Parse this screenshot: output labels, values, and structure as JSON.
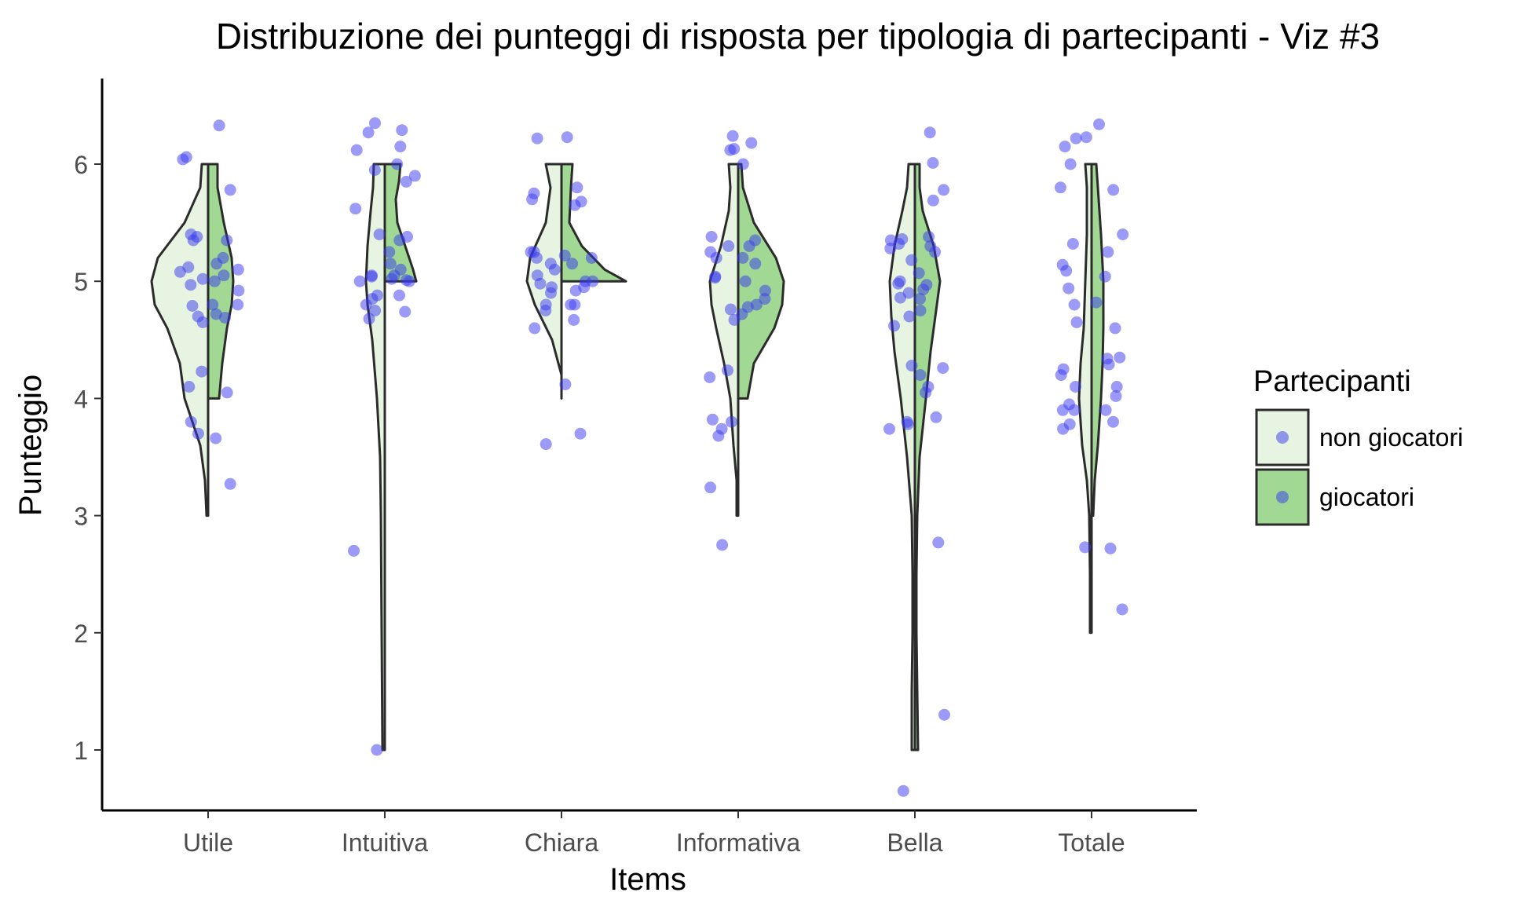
{
  "chart_data": {
    "type": "violin",
    "title": "Distribuzione dei punteggi di risposta per tipologia di partecipanti - Viz #3",
    "xlabel": "Items",
    "ylabel": "Punteggio",
    "categories": [
      "Utile",
      "Intuitiva",
      "Chiara",
      "Informativa",
      "Bella",
      "Totale"
    ],
    "y_ticks": [
      1,
      2,
      3,
      4,
      5,
      6
    ],
    "ylim": [
      0.4,
      6.6
    ],
    "grid": false,
    "legend": {
      "title": "Partecipanti",
      "position": "right",
      "entries": [
        {
          "label": "non giocatori",
          "color": "#e6f4e1"
        },
        {
          "label": "giocatori",
          "color": "#a0d894"
        }
      ]
    },
    "point_color": "#3838f0",
    "groups": [
      {
        "category": "Utile",
        "non_giocatori": {
          "min": 3,
          "max": 6,
          "density": [
            [
              3,
              2
            ],
            [
              3.3,
              4
            ],
            [
              3.6,
              10
            ],
            [
              4,
              30
            ],
            [
              4.3,
              36
            ],
            [
              4.6,
              52
            ],
            [
              4.8,
              68
            ],
            [
              5,
              72
            ],
            [
              5.2,
              64
            ],
            [
              5.5,
              30
            ],
            [
              5.8,
              10
            ],
            [
              6,
              8
            ]
          ]
        },
        "giocatori": {
          "min": 4,
          "max": 6,
          "density": [
            [
              4,
              14
            ],
            [
              4.3,
              18
            ],
            [
              4.6,
              24
            ],
            [
              4.8,
              30
            ],
            [
              5,
              32
            ],
            [
              5.2,
              30
            ],
            [
              5.5,
              20
            ],
            [
              5.8,
              12
            ],
            [
              6,
              12
            ]
          ]
        },
        "points_non_giocatori": [
          3.8,
          4.1,
          4.23,
          4.7,
          4.79,
          4.97,
          5.02,
          5.08,
          5.12,
          5.35,
          5.38,
          6.04,
          6.06,
          4.65,
          5.4,
          3.7
        ],
        "points_giocatori": [
          3.27,
          3.66,
          4.05,
          4.69,
          4.72,
          4.8,
          4.8,
          4.92,
          5.0,
          5.05,
          5.1,
          5.15,
          5.2,
          5.35,
          5.78,
          6.33
        ]
      },
      {
        "category": "Intuitiva",
        "non_giocatori": {
          "min": 1,
          "max": 6,
          "density": [
            [
              1,
              3
            ],
            [
              2,
              4
            ],
            [
              3,
              5
            ],
            [
              3.5,
              6
            ],
            [
              4,
              10
            ],
            [
              4.5,
              16
            ],
            [
              4.8,
              22
            ],
            [
              5,
              24
            ],
            [
              5.3,
              22
            ],
            [
              5.6,
              18
            ],
            [
              5.8,
              15
            ],
            [
              6,
              14
            ]
          ]
        },
        "giocatori": {
          "min": 5,
          "max": 6,
          "density": [
            [
              5,
              40
            ],
            [
              5.1,
              36
            ],
            [
              5.3,
              26
            ],
            [
              5.5,
              16
            ],
            [
              5.7,
              14
            ],
            [
              5.85,
              18
            ],
            [
              6,
              20
            ]
          ]
        },
        "points_non_giocatori": [
          1.0,
          2.7,
          4.68,
          4.75,
          4.8,
          4.85,
          4.88,
          5.0,
          5.04,
          5.05,
          5.4,
          5.62,
          5.95,
          6.12,
          6.27,
          6.35
        ],
        "points_giocatori": [
          4.74,
          4.88,
          5.0,
          5.01,
          5.02,
          5.05,
          5.1,
          5.15,
          5.25,
          5.35,
          5.38,
          5.85,
          5.9,
          6.0,
          6.15,
          6.29
        ]
      },
      {
        "category": "Chiara",
        "non_giocatori": {
          "min": 4,
          "max": 6,
          "density": [
            [
              4,
              0
            ],
            [
              4.2,
              0
            ],
            [
              4.5,
              12
            ],
            [
              4.8,
              34
            ],
            [
              5,
              44
            ],
            [
              5.2,
              40
            ],
            [
              5.5,
              20
            ],
            [
              5.8,
              14
            ],
            [
              6,
              20
            ]
          ]
        },
        "giocatori": {
          "min": 5,
          "max": 6,
          "density": [
            [
              5,
              82
            ],
            [
              5.1,
              55
            ],
            [
              5.3,
              26
            ],
            [
              5.5,
              10
            ],
            [
              5.8,
              12
            ],
            [
              6,
              14
            ]
          ]
        },
        "points_non_giocatori": [
          3.61,
          4.6,
          4.75,
          4.8,
          4.9,
          4.95,
          5.05,
          5.1,
          5.15,
          5.2,
          5.25,
          5.25,
          5.7,
          5.75,
          6.22,
          4.98
        ],
        "points_giocatori": [
          3.7,
          4.12,
          4.67,
          4.8,
          4.8,
          4.92,
          4.95,
          5.0,
          5.15,
          5.2,
          5.22,
          5.65,
          5.68,
          5.8,
          6.23,
          5.0
        ]
      },
      {
        "category": "Informativa",
        "non_giocatori": {
          "min": 3,
          "max": 6,
          "density": [
            [
              3,
              2
            ],
            [
              3.3,
              2
            ],
            [
              3.6,
              6
            ],
            [
              4,
              10
            ],
            [
              4.3,
              18
            ],
            [
              4.6,
              28
            ],
            [
              4.8,
              34
            ],
            [
              5,
              36
            ],
            [
              5.3,
              22
            ],
            [
              5.6,
              12
            ],
            [
              5.8,
              10
            ],
            [
              6,
              12
            ]
          ]
        },
        "giocatori": {
          "min": 4,
          "max": 6,
          "density": [
            [
              4,
              12
            ],
            [
              4.3,
              20
            ],
            [
              4.6,
              46
            ],
            [
              4.8,
              56
            ],
            [
              5,
              58
            ],
            [
              5.2,
              48
            ],
            [
              5.5,
              20
            ],
            [
              5.8,
              6
            ],
            [
              6,
              4
            ]
          ]
        },
        "points_non_giocatori": [
          2.75,
          3.24,
          3.68,
          3.74,
          3.8,
          3.82,
          4.18,
          4.24,
          4.67,
          4.76,
          5.03,
          5.04,
          5.2,
          5.25,
          5.3,
          5.38,
          6.12,
          6.13,
          6.24
        ],
        "points_giocatori": [
          4.72,
          4.8,
          4.85,
          4.92,
          5.0,
          5.15,
          5.2,
          5.3,
          5.35,
          6.0,
          6.18,
          4.78
        ]
      },
      {
        "category": "Bella",
        "non_giocatori": {
          "min": 1,
          "max": 6,
          "density": [
            [
              1,
              4
            ],
            [
              1.5,
              4
            ],
            [
              2,
              3
            ],
            [
              2.5,
              3
            ],
            [
              3,
              4
            ],
            [
              3.5,
              10
            ],
            [
              4,
              18
            ],
            [
              4.4,
              26
            ],
            [
              4.7,
              30
            ],
            [
              5,
              32
            ],
            [
              5.3,
              26
            ],
            [
              5.6,
              16
            ],
            [
              5.8,
              10
            ],
            [
              6,
              8
            ]
          ]
        },
        "giocatori": {
          "min": 1,
          "max": 6,
          "density": [
            [
              1,
              4
            ],
            [
              1.5,
              3
            ],
            [
              2,
              2
            ],
            [
              2.5,
              2
            ],
            [
              3,
              3
            ],
            [
              3.5,
              6
            ],
            [
              4,
              14
            ],
            [
              4.4,
              20
            ],
            [
              4.7,
              26
            ],
            [
              5,
              32
            ],
            [
              5.3,
              24
            ],
            [
              5.6,
              10
            ],
            [
              5.8,
              6
            ],
            [
              6,
              6
            ]
          ]
        },
        "points_non_giocatori": [
          0.65,
          3.74,
          3.78,
          3.8,
          4.28,
          4.62,
          4.7,
          4.86,
          4.9,
          4.98,
          5.0,
          5.18,
          5.28,
          5.32,
          5.35,
          5.36
        ],
        "points_giocatori": [
          1.3,
          2.77,
          3.84,
          4.05,
          4.1,
          4.2,
          4.26,
          4.75,
          4.85,
          4.93,
          4.97,
          5.07,
          5.25,
          5.3,
          5.38,
          5.69,
          5.78,
          6.01,
          6.27
        ]
      },
      {
        "category": "Totale",
        "non_giocatori": {
          "min": 2,
          "max": 6,
          "density": [
            [
              2,
              2
            ],
            [
              2.5,
              2
            ],
            [
              3,
              3
            ],
            [
              3.3,
              6
            ],
            [
              3.6,
              12
            ],
            [
              4,
              16
            ],
            [
              4.3,
              14
            ],
            [
              4.6,
              10
            ],
            [
              5,
              8
            ],
            [
              5.4,
              6
            ],
            [
              5.8,
              6
            ],
            [
              6,
              8
            ]
          ]
        },
        "giocatori": {
          "min": 3,
          "max": 6,
          "density": [
            [
              3,
              2
            ],
            [
              3.3,
              4
            ],
            [
              3.6,
              8
            ],
            [
              4,
              12
            ],
            [
              4.3,
              14
            ],
            [
              4.6,
              15
            ],
            [
              5,
              15
            ],
            [
              5.4,
              12
            ],
            [
              5.8,
              8
            ],
            [
              6,
              6
            ]
          ]
        },
        "points_non_giocatori": [
          2.73,
          3.74,
          3.78,
          3.9,
          3.9,
          3.95,
          4.1,
          4.2,
          4.25,
          4.65,
          4.8,
          4.94,
          5.09,
          5.14,
          5.32,
          5.8,
          6.0,
          6.15,
          6.22,
          6.23
        ],
        "points_giocatori": [
          2.2,
          2.72,
          3.8,
          3.9,
          4.02,
          4.1,
          4.29,
          4.34,
          4.35,
          4.6,
          4.82,
          5.04,
          5.25,
          5.4,
          5.78,
          6.34
        ]
      }
    ]
  }
}
